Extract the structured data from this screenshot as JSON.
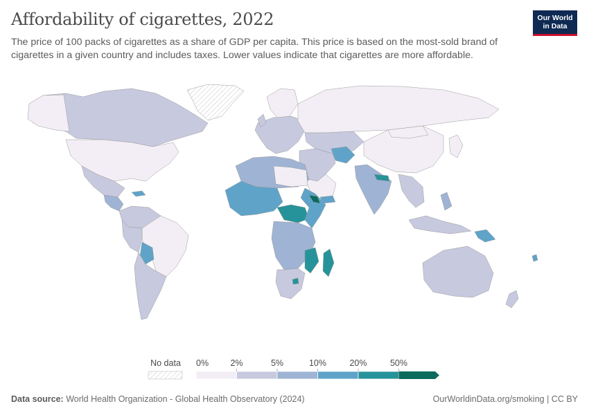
{
  "header": {
    "title": "Affordability of cigarettes, 2022",
    "subtitle": "The price of 100 packs of cigarettes as a share of GDP per capita. This price is based on the most-sold brand of cigarettes in a given country and includes taxes. Lower values indicate that cigarettes are more affordable."
  },
  "logo": {
    "line1": "Our World",
    "line2": "in Data"
  },
  "legend": {
    "no_data_label": "No data",
    "ticks": [
      "0%",
      "2%",
      "5%",
      "10%",
      "20%",
      "50%"
    ],
    "colors": [
      "#f3eef5",
      "#c7c9df",
      "#9fb3d4",
      "#5fa3c9",
      "#26939a",
      "#0a6b5e"
    ],
    "no_data_pattern_color": "#cccccc"
  },
  "footer": {
    "source_label": "Data source:",
    "source_text": "World Health Organization - Global Health Observatory (2024)",
    "url": "OurWorldinData.org/smoking | CC BY"
  }
}
